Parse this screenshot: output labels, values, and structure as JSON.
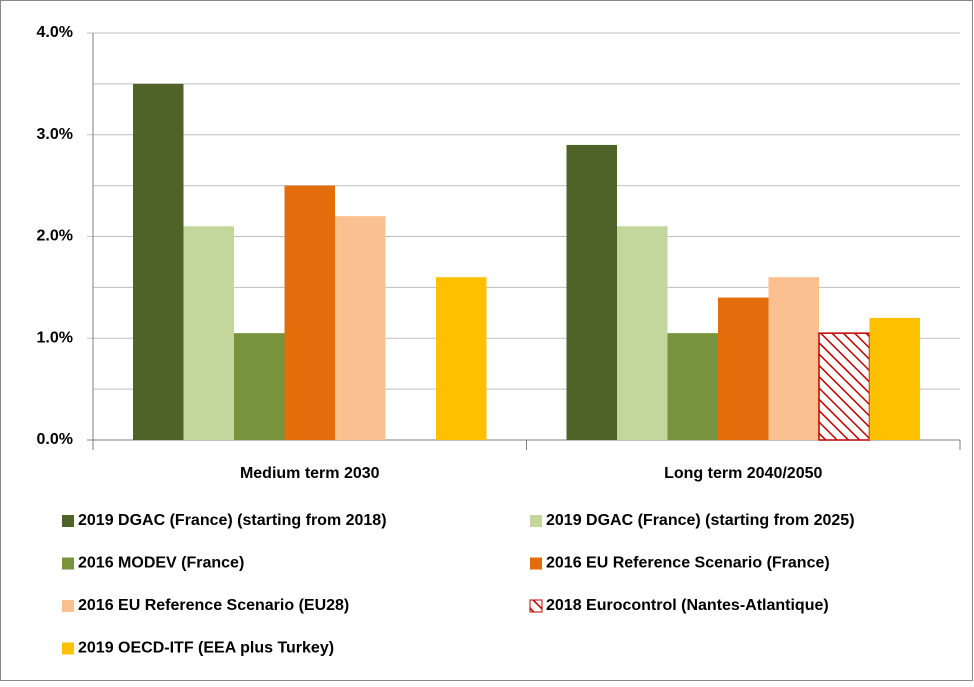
{
  "chart_data": {
    "type": "bar",
    "categories": [
      "Medium term 2030",
      "Long term 2040/2050"
    ],
    "series": [
      {
        "name": "2019 DGAC (France) (starting from 2018)",
        "color": "#4f6228",
        "values": [
          3.5,
          2.9
        ]
      },
      {
        "name": "2019 DGAC (France) (starting from 2025)",
        "color": "#c3d69b",
        "values": [
          2.1,
          2.1
        ]
      },
      {
        "name": "2016 MODEV (France)",
        "color": "#77933c",
        "values": [
          1.05,
          1.05
        ]
      },
      {
        "name": "2016 EU Reference Scenario (France)",
        "color": "#e46c0a",
        "values": [
          2.5,
          1.4
        ]
      },
      {
        "name": "2016 EU Reference Scenario (EU28)",
        "color": "#fac090",
        "values": [
          2.2,
          1.6
        ]
      },
      {
        "name": "2018 Eurocontrol (Nantes-Atlantique)",
        "color": "#c00000",
        "pattern": "hatch",
        "values": [
          null,
          1.05
        ]
      },
      {
        "name": "2019 OECD-ITF (EEA plus Turkey)",
        "color": "#ffc000",
        "values": [
          1.6,
          1.2
        ]
      }
    ],
    "ylim": [
      0,
      4
    ],
    "yticks": [
      {
        "value": 0,
        "label": "0.0%"
      },
      {
        "value": 1,
        "label": "1.0%"
      },
      {
        "value": 2,
        "label": "2.0%"
      },
      {
        "value": 3,
        "label": "3.0%"
      },
      {
        "value": 4,
        "label": "4.0%"
      }
    ],
    "minor_yticks": [
      0.5,
      1.5,
      2.5,
      3.5
    ],
    "grid": true
  }
}
